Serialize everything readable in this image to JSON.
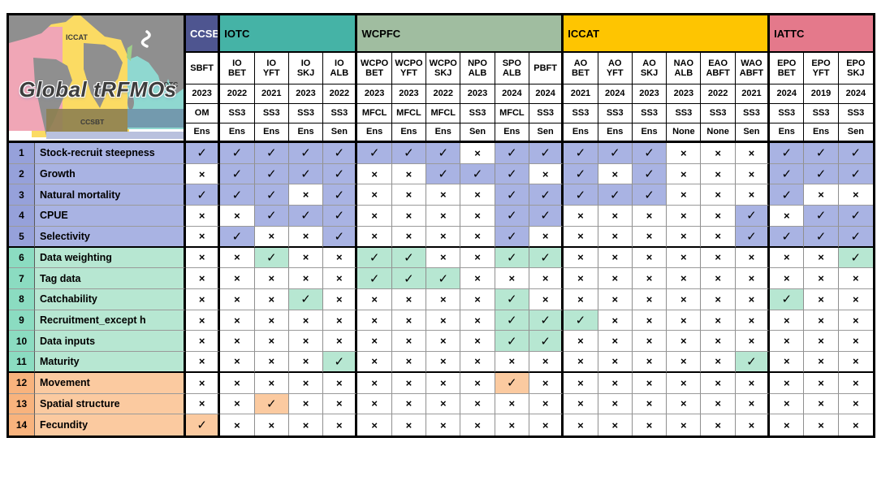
{
  "title": "Global tRFMOs",
  "map": {
    "title": "Global tRFMOs",
    "labels": {
      "iccat": "ICCAT",
      "iotc": "IOTC",
      "ccsbt": "CCSBT"
    },
    "colors": {
      "pink": "#f0a6b6",
      "yellow": "#fbdb63",
      "teal": "#8fd8d0",
      "land": "#8f8f8f",
      "ccsbt_band": "#8d8050",
      "ccsbt_band_east": "#6f8fa8",
      "lavender_strip": "#b9c1de",
      "squiggle": "#ffffff",
      "red_sea": "#9fd089"
    }
  },
  "marks": {
    "check": "✓",
    "cross": "×"
  },
  "groups": [
    {
      "name": "CCSBT",
      "color": "#4e5590",
      "text_color": "#ffffff",
      "columns": [
        {
          "stock": "SBFT",
          "year": "2023",
          "model": "OM",
          "ens": "Ens"
        }
      ]
    },
    {
      "name": "IOTC",
      "color": "#45b3a6",
      "text_color": "#000000",
      "columns": [
        {
          "stock": "IO BET",
          "year": "2022",
          "model": "SS3",
          "ens": "Ens"
        },
        {
          "stock": "IO YFT",
          "year": "2021",
          "model": "SS3",
          "ens": "Ens"
        },
        {
          "stock": "IO SKJ",
          "year": "2023",
          "model": "SS3",
          "ens": "Ens"
        },
        {
          "stock": "IO ALB",
          "year": "2022",
          "model": "SS3",
          "ens": "Sen"
        }
      ]
    },
    {
      "name": "WCPFC",
      "color": "#a0bda0",
      "text_color": "#000000",
      "columns": [
        {
          "stock": "WCPO BET",
          "year": "2023",
          "model": "MFCL",
          "ens": "Ens"
        },
        {
          "stock": "WCPO YFT",
          "year": "2023",
          "model": "MFCL",
          "ens": "Ens"
        },
        {
          "stock": "WCPO SKJ",
          "year": "2022",
          "model": "MFCL",
          "ens": "Ens"
        },
        {
          "stock": "NPO ALB",
          "year": "2023",
          "model": "SS3",
          "ens": "Sen"
        },
        {
          "stock": "SPO ALB",
          "year": "2024",
          "model": "MFCL",
          "ens": "Ens"
        },
        {
          "stock": "PBFT",
          "year": "2024",
          "model": "SS3",
          "ens": "Sen"
        }
      ]
    },
    {
      "name": "ICCAT",
      "color": "#fec501",
      "text_color": "#000000",
      "columns": [
        {
          "stock": "AO BET",
          "year": "2021",
          "model": "SS3",
          "ens": "Ens"
        },
        {
          "stock": "AO YFT",
          "year": "2024",
          "model": "SS3",
          "ens": "Ens"
        },
        {
          "stock": "AO SKJ",
          "year": "2023",
          "model": "SS3",
          "ens": "Ens"
        },
        {
          "stock": "NAO ALB",
          "year": "2023",
          "model": "SS3",
          "ens": "None"
        },
        {
          "stock": "EAO ABFT",
          "year": "2022",
          "model": "SS3",
          "ens": "None"
        },
        {
          "stock": "WAO ABFT",
          "year": "2021",
          "model": "SS3",
          "ens": "Sen"
        }
      ]
    },
    {
      "name": "IATTC",
      "color": "#e4798b",
      "text_color": "#000000",
      "columns": [
        {
          "stock": "EPO BET",
          "year": "2024",
          "model": "SS3",
          "ens": "Ens"
        },
        {
          "stock": "EPO YFT",
          "year": "2019",
          "model": "SS3",
          "ens": "Ens"
        },
        {
          "stock": "EPO SKJ",
          "year": "2024",
          "model": "SS3",
          "ens": "Sen"
        }
      ]
    }
  ],
  "row_groups": [
    {
      "name": "group-lavender",
      "band": "#a9b3e3",
      "num_band": "#96a1da"
    },
    {
      "name": "group-mint",
      "band": "#b7e7d2",
      "num_band": "#8bdcc1"
    },
    {
      "name": "group-orange",
      "band": "#fbcaa0",
      "num_band": "#f8b37d"
    }
  ],
  "rows": [
    {
      "num": "1",
      "label": "Stock-recruit steepness",
      "group": 0,
      "marks": [
        1,
        1,
        1,
        1,
        1,
        1,
        1,
        1,
        0,
        1,
        1,
        1,
        1,
        1,
        0,
        0,
        0,
        1,
        1,
        1
      ]
    },
    {
      "num": "2",
      "label": "Growth",
      "group": 0,
      "marks": [
        0,
        1,
        1,
        1,
        1,
        0,
        0,
        1,
        1,
        1,
        0,
        1,
        0,
        1,
        0,
        0,
        0,
        1,
        1,
        1
      ]
    },
    {
      "num": "3",
      "label": "Natural mortality",
      "group": 0,
      "marks": [
        1,
        1,
        1,
        0,
        1,
        0,
        0,
        0,
        0,
        1,
        1,
        1,
        1,
        1,
        0,
        0,
        0,
        1,
        0,
        0
      ]
    },
    {
      "num": "4",
      "label": "CPUE",
      "group": 0,
      "marks": [
        0,
        0,
        1,
        1,
        1,
        0,
        0,
        0,
        0,
        1,
        1,
        0,
        0,
        0,
        0,
        0,
        1,
        0,
        1,
        1
      ]
    },
    {
      "num": "5",
      "label": "Selectivity",
      "group": 0,
      "marks": [
        0,
        1,
        0,
        0,
        1,
        0,
        0,
        0,
        0,
        1,
        0,
        0,
        0,
        0,
        0,
        0,
        1,
        1,
        1,
        1
      ]
    },
    {
      "num": "6",
      "label": "Data weighting",
      "group": 1,
      "marks": [
        0,
        0,
        1,
        0,
        0,
        1,
        1,
        0,
        0,
        1,
        1,
        0,
        0,
        0,
        0,
        0,
        0,
        0,
        0,
        1
      ]
    },
    {
      "num": "7",
      "label": "Tag data",
      "group": 1,
      "marks": [
        0,
        0,
        0,
        0,
        0,
        1,
        1,
        1,
        0,
        0,
        0,
        0,
        0,
        0,
        0,
        0,
        0,
        0,
        0,
        0
      ]
    },
    {
      "num": "8",
      "label": "Catchability",
      "group": 1,
      "marks": [
        0,
        0,
        0,
        1,
        0,
        0,
        0,
        0,
        0,
        1,
        0,
        0,
        0,
        0,
        0,
        0,
        0,
        1,
        0,
        0
      ]
    },
    {
      "num": "9",
      "label": "Recruitment_except h",
      "group": 1,
      "marks": [
        0,
        0,
        0,
        0,
        0,
        0,
        0,
        0,
        0,
        1,
        1,
        1,
        0,
        0,
        0,
        0,
        0,
        0,
        0,
        0
      ]
    },
    {
      "num": "10",
      "label": "Data inputs",
      "group": 1,
      "marks": [
        0,
        0,
        0,
        0,
        0,
        0,
        0,
        0,
        0,
        1,
        1,
        0,
        0,
        0,
        0,
        0,
        0,
        0,
        0,
        0
      ]
    },
    {
      "num": "11",
      "label": "Maturity",
      "group": 1,
      "marks": [
        0,
        0,
        0,
        0,
        1,
        0,
        0,
        0,
        0,
        0,
        0,
        0,
        0,
        0,
        0,
        0,
        1,
        0,
        0,
        0
      ]
    },
    {
      "num": "12",
      "label": "Movement",
      "group": 2,
      "marks": [
        0,
        0,
        0,
        0,
        0,
        0,
        0,
        0,
        0,
        1,
        0,
        0,
        0,
        0,
        0,
        0,
        0,
        0,
        0,
        0
      ]
    },
    {
      "num": "13",
      "label": "Spatial structure",
      "group": 2,
      "marks": [
        0,
        0,
        1,
        0,
        0,
        0,
        0,
        0,
        0,
        0,
        0,
        0,
        0,
        0,
        0,
        0,
        0,
        0,
        0,
        0
      ]
    },
    {
      "num": "14",
      "label": "Fecundity",
      "group": 2,
      "marks": [
        1,
        0,
        0,
        0,
        0,
        0,
        0,
        0,
        0,
        0,
        0,
        0,
        0,
        0,
        0,
        0,
        0,
        0,
        0,
        0
      ]
    }
  ]
}
